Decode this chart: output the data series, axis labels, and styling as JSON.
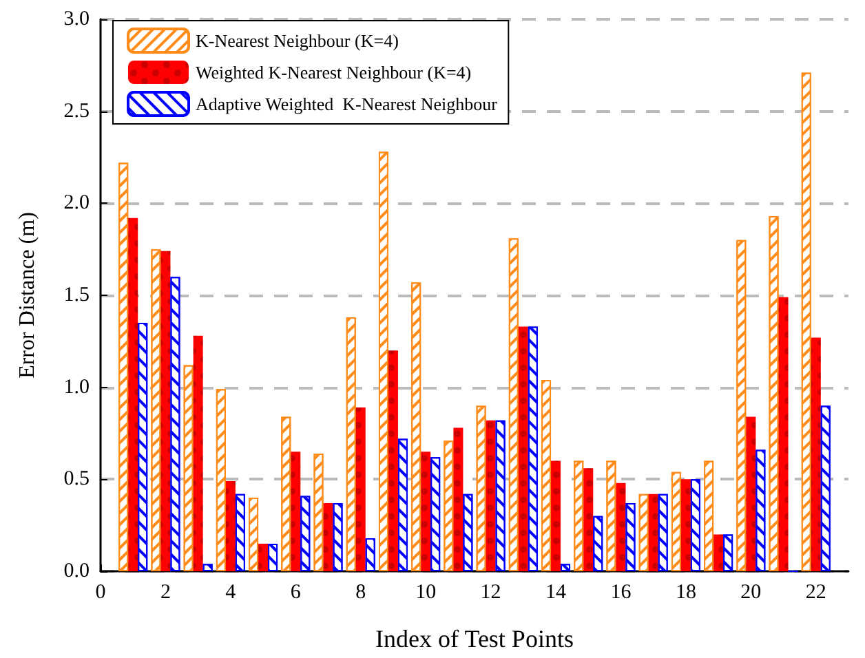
{
  "chart_data": {
    "type": "bar",
    "xlabel": "Index of Test Points",
    "ylabel": "Error Distance (m)",
    "x": [
      1,
      2,
      3,
      4,
      5,
      6,
      7,
      8,
      9,
      10,
      11,
      12,
      13,
      14,
      15,
      16,
      17,
      18,
      19,
      20,
      21,
      22
    ],
    "series": [
      {
        "name": "K-Nearest Neighbour (K=4)",
        "color": "#ff8c1a",
        "values": [
          2.22,
          1.75,
          1.12,
          0.99,
          0.4,
          0.84,
          0.64,
          1.38,
          2.28,
          1.57,
          0.71,
          0.9,
          1.81,
          1.04,
          0.6,
          0.6,
          0.42,
          0.54,
          0.6,
          1.8,
          1.93,
          2.71
        ]
      },
      {
        "name": "Weighted K-Nearest Neighbour (K=4)",
        "color": "#ff0000",
        "values": [
          1.92,
          1.74,
          1.28,
          0.49,
          0.15,
          0.65,
          0.37,
          0.89,
          1.2,
          0.65,
          0.78,
          0.82,
          1.33,
          0.6,
          0.56,
          0.48,
          0.42,
          0.5,
          0.2,
          0.84,
          1.49,
          1.27
        ]
      },
      {
        "name": "Adaptive Weighted  K-Nearest Neighbour",
        "color": "#0000ff",
        "values": [
          1.35,
          1.6,
          0.04,
          0.42,
          0.15,
          0.41,
          0.37,
          0.18,
          0.72,
          0.62,
          0.42,
          0.82,
          1.33,
          0.04,
          0.3,
          0.37,
          0.42,
          0.5,
          0.2,
          0.66,
          0.0,
          0.9
        ]
      }
    ],
    "xlim": [
      0,
      23
    ],
    "xticks": [
      0,
      2,
      4,
      6,
      8,
      10,
      12,
      14,
      16,
      18,
      20,
      22
    ],
    "ylim": [
      0,
      3
    ],
    "yticks": [
      {
        "value": 0,
        "label": "0.0"
      },
      {
        "value": 0.5,
        "label": "0.5"
      },
      {
        "value": 1,
        "label": "1.0"
      },
      {
        "value": 1.5,
        "label": "1.5"
      },
      {
        "value": 2,
        "label": "2.0"
      },
      {
        "value": 2.5,
        "label": "2.5"
      },
      {
        "value": 3,
        "label": "3.0"
      }
    ],
    "grid": "y",
    "legend": "top left"
  }
}
